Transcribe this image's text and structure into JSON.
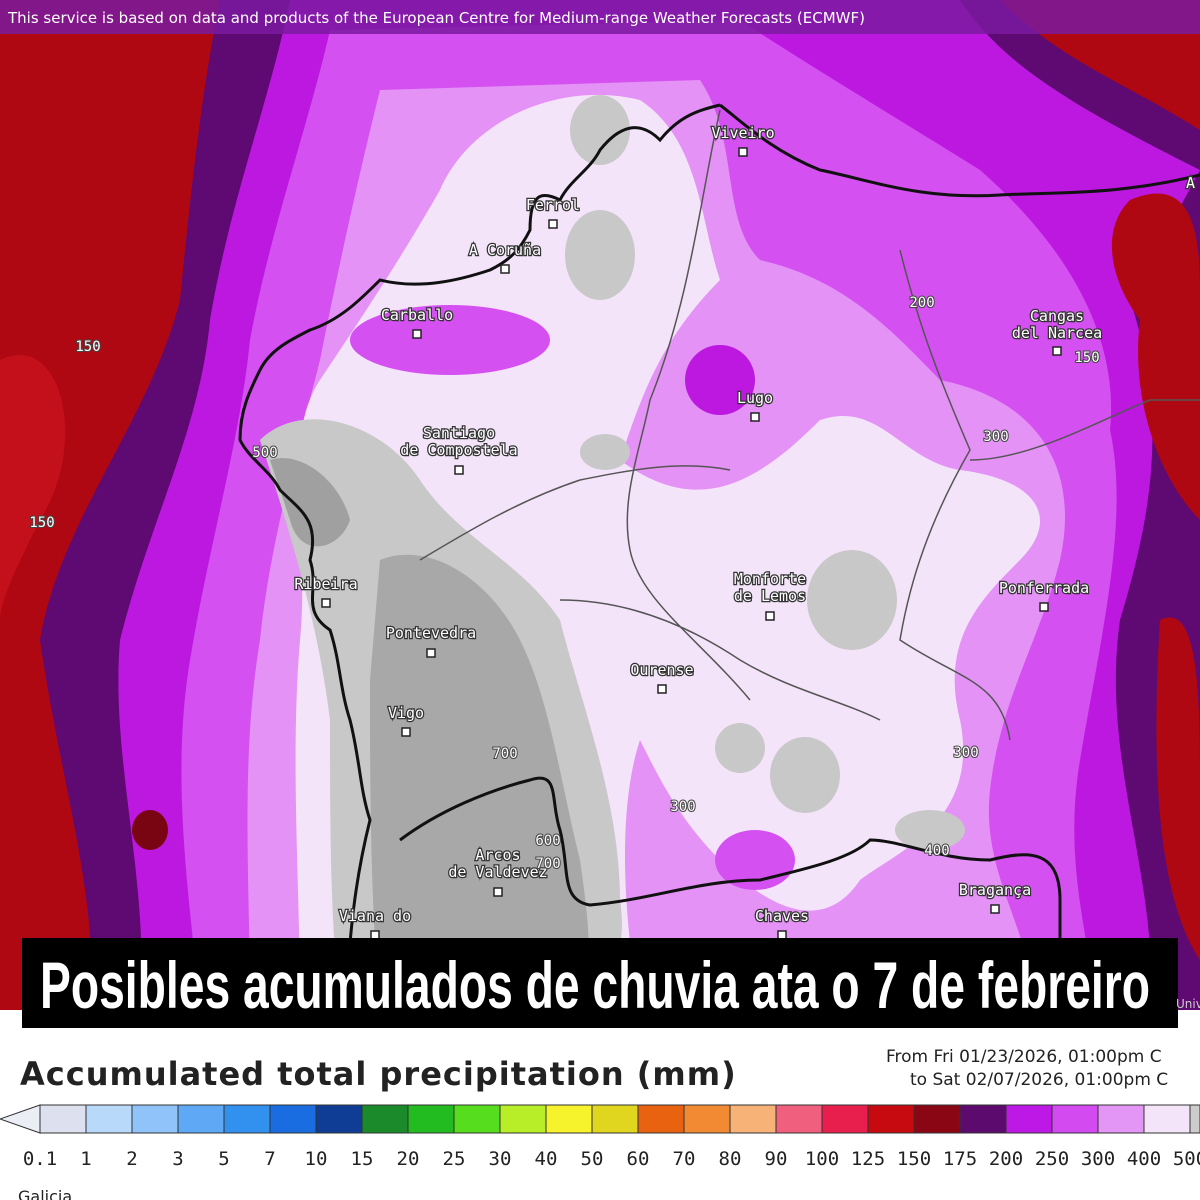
{
  "attribution": "This service is based on data and products of the European Centre for Medium-range Weather Forecasts (ECMWF)",
  "map": {
    "places": [
      {
        "lines": [
          "Viveiro"
        ]
      },
      {
        "lines": [
          "Ferrol"
        ]
      },
      {
        "lines": [
          "A Coruña"
        ]
      },
      {
        "lines": [
          "Carballo"
        ]
      },
      {
        "lines": [
          "Lugo"
        ]
      },
      {
        "lines": [
          "Santiago",
          "de Compostela"
        ]
      },
      {
        "lines": [
          "Cangas",
          "del Narcea"
        ]
      },
      {
        "lines": [
          "Ribeira"
        ]
      },
      {
        "lines": [
          "Pontevedra"
        ]
      },
      {
        "lines": [
          "Monforte",
          "de Lemos"
        ]
      },
      {
        "lines": [
          "Ponferrada"
        ]
      },
      {
        "lines": [
          "Ourense"
        ]
      },
      {
        "lines": [
          "Vigo"
        ]
      },
      {
        "lines": [
          "Arcos",
          "de Valdevez"
        ]
      },
      {
        "lines": [
          "Viana do"
        ]
      },
      {
        "lines": [
          "Chaves"
        ]
      },
      {
        "lines": [
          "Bragança"
        ]
      }
    ],
    "contour_labels": [
      150,
      150,
      500,
      200,
      150,
      300,
      700,
      300,
      600,
      700,
      300,
      400
    ],
    "edge_labels": [
      "A",
      "Univ"
    ]
  },
  "banner": "Posibles acumulados de chuvia ata o 7 de febreiro",
  "legend": {
    "title": "Accumulated total precipitation (mm)",
    "period": [
      "From Fri 01/23/2026, 01:00pm C",
      "to Sat 02/07/2026, 01:00pm C"
    ],
    "ticks": [
      0.1,
      1,
      2,
      3,
      5,
      7,
      10,
      15,
      20,
      25,
      30,
      40,
      50,
      60,
      70,
      80,
      90,
      100,
      125,
      150,
      175,
      200,
      250,
      300,
      400,
      500
    ],
    "colors": [
      "#dce0ef",
      "#b9d9fb",
      "#90c3f9",
      "#5ea8f5",
      "#3290ef",
      "#1a6de0",
      "#0f3c95",
      "#1a8a2a",
      "#22bb20",
      "#56dd1e",
      "#b8ee28",
      "#f6f22c",
      "#e0d61f",
      "#e86210",
      "#f28a34",
      "#f7b277",
      "#f0607e",
      "#e81e4c",
      "#c60a10",
      "#8a0614",
      "#5c0a6e",
      "#be18e6",
      "#d24af0",
      "#e496f6",
      "#f4e4fa",
      "#cccccc"
    ]
  },
  "footer": "Galicia"
}
